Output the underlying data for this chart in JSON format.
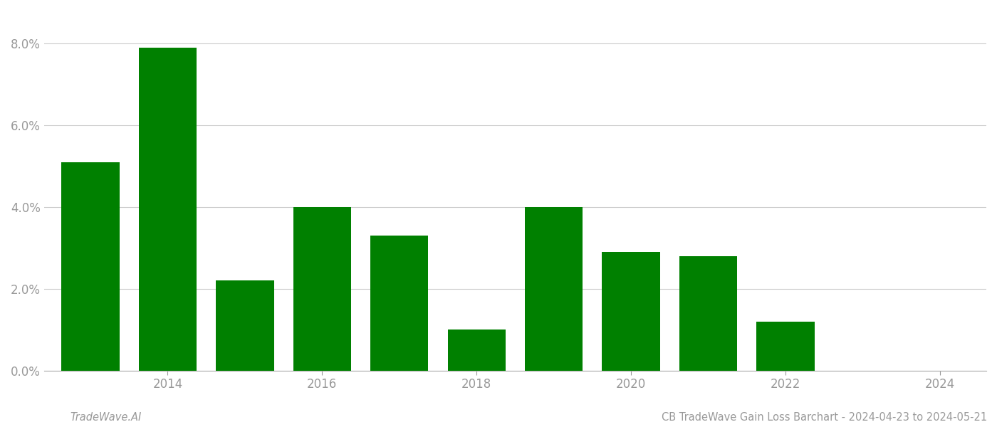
{
  "years": [
    2013,
    2014,
    2015,
    2016,
    2017,
    2018,
    2019,
    2020,
    2021,
    2022,
    2023
  ],
  "values": [
    0.051,
    0.079,
    0.022,
    0.04,
    0.033,
    0.01,
    0.04,
    0.029,
    0.028,
    0.012,
    0.0
  ],
  "bar_color": "#008000",
  "background_color": "#ffffff",
  "grid_color": "#cccccc",
  "tick_color": "#999999",
  "ytick_labels": [
    "0.0%",
    "2.0%",
    "4.0%",
    "6.0%",
    "8.0%"
  ],
  "ytick_values": [
    0.0,
    0.02,
    0.04,
    0.06,
    0.08
  ],
  "xtick_labels": [
    "2014",
    "2016",
    "2018",
    "2020",
    "2022",
    "2024"
  ],
  "xtick_positions": [
    2014,
    2016,
    2018,
    2020,
    2022,
    2024
  ],
  "xlim": [
    2012.4,
    2024.6
  ],
  "ylim": [
    0.0,
    0.088
  ],
  "footer_left": "TradeWave.AI",
  "footer_right": "CB TradeWave Gain Loss Barchart - 2024-04-23 to 2024-05-21",
  "bar_width": 0.75,
  "tick_fontsize": 12,
  "footer_fontsize": 10.5
}
